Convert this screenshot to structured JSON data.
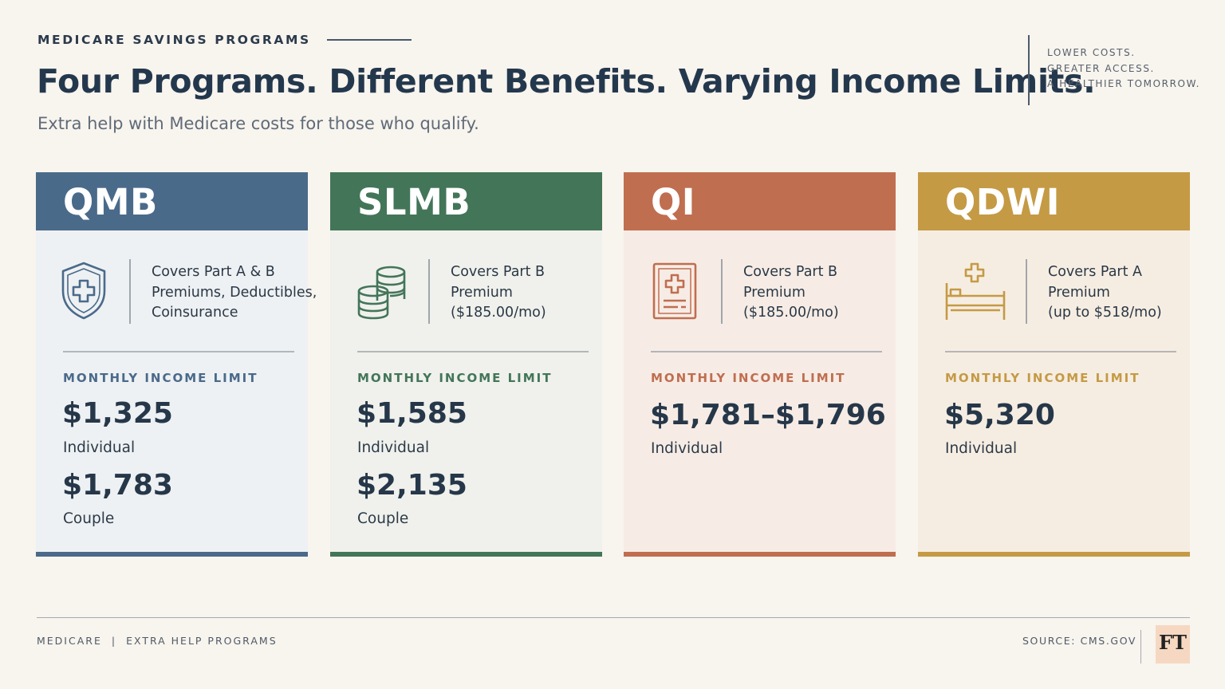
{
  "header": {
    "eyebrow": "MEDICARE SAVINGS PROGRAMS",
    "title": "Four Programs. Different Benefits. Varying Income Limits.",
    "subtitle": "Extra help with Medicare costs for those who qualify.",
    "taglines": [
      "LOWER COSTS.",
      "GREATER ACCESS.",
      "A HEALTHIER TOMORROW."
    ]
  },
  "programs": [
    {
      "name": "QMB",
      "icon": "shield-plus-icon",
      "accent": "#4a6a8a",
      "body_bg": "#eef1f3",
      "covers": [
        "Covers Part A & B",
        "Premiums, Deductibles,",
        "Coinsurance"
      ],
      "limit_label": "MONTHLY INCOME LIMIT",
      "limits": [
        {
          "amount": "$1,325",
          "label": "Individual"
        },
        {
          "amount": "$1,783",
          "label": "Couple"
        }
      ]
    },
    {
      "name": "SLMB",
      "icon": "coins-stack-icon",
      "accent": "#437559",
      "body_bg": "#f0f1ec",
      "covers": [
        "Covers Part B",
        "Premium",
        "($185.00/mo)"
      ],
      "limit_label": "MONTHLY INCOME LIMIT",
      "limits": [
        {
          "amount": "$1,585",
          "label": "Individual"
        },
        {
          "amount": "$2,135",
          "label": "Couple"
        }
      ]
    },
    {
      "name": "QI",
      "icon": "medical-document-icon",
      "accent": "#c06e50",
      "body_bg": "#f6ece5",
      "covers": [
        "Covers Part B",
        "Premium",
        "($185.00/mo)"
      ],
      "limit_label": "MONTHLY INCOME LIMIT",
      "limits": [
        {
          "amount": "$1,781–$1,796",
          "label": "Individual"
        }
      ]
    },
    {
      "name": "QDWI",
      "icon": "hospital-bed-icon",
      "accent": "#c49a45",
      "body_bg": "#f6ede2",
      "covers": [
        "Covers Part A",
        "Premium",
        "(up to $518/mo)"
      ],
      "limit_label": "MONTHLY INCOME LIMIT",
      "limits": [
        {
          "amount": "$5,320",
          "label": "Individual"
        }
      ]
    }
  ],
  "footer": {
    "left_primary": "MEDICARE",
    "separator": "|",
    "left_secondary": "EXTRA HELP PROGRAMS",
    "source": "SOURCE: CMS.GOV",
    "logo_text": "FT"
  }
}
